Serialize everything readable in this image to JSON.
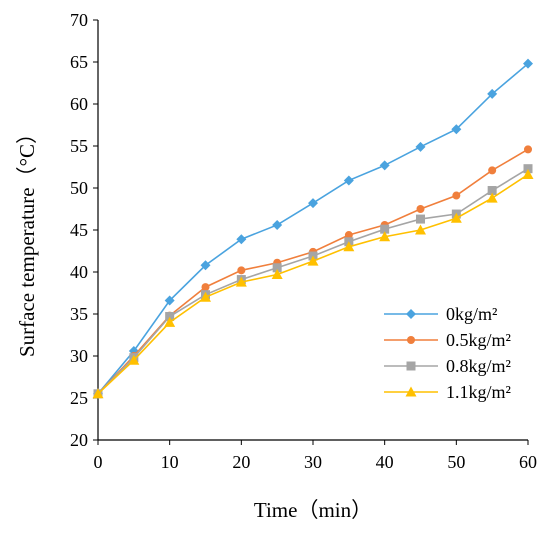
{
  "chart_data": {
    "type": "line",
    "title": "",
    "xlabel": "Time（min）",
    "ylabel": "Surface temperature（°C）",
    "xlim": [
      0,
      60
    ],
    "ylim": [
      20,
      70
    ],
    "x_ticks": [
      0,
      10,
      20,
      30,
      40,
      50,
      60
    ],
    "y_ticks": [
      20,
      25,
      30,
      35,
      40,
      45,
      50,
      55,
      60,
      65,
      70
    ],
    "grid": false,
    "legend_position": "bottom-right",
    "x": [
      0,
      5,
      10,
      15,
      20,
      25,
      30,
      35,
      40,
      45,
      50,
      55,
      60
    ],
    "series": [
      {
        "name": "0kg/m²",
        "color": "#4AA3DF",
        "marker": "diamond",
        "values": [
          25.5,
          30.6,
          36.6,
          40.8,
          43.9,
          45.6,
          48.2,
          50.9,
          52.7,
          54.9,
          57.0,
          61.2,
          64.8
        ]
      },
      {
        "name": "0.5kg/m²",
        "color": "#F07F3C",
        "marker": "circle",
        "values": [
          25.5,
          30.0,
          34.8,
          38.2,
          40.2,
          41.1,
          42.4,
          44.4,
          45.6,
          47.5,
          49.1,
          52.1,
          54.6
        ]
      },
      {
        "name": "0.8kg/m²",
        "color": "#A5A5A5",
        "marker": "square",
        "values": [
          25.5,
          29.8,
          34.7,
          37.3,
          39.1,
          40.5,
          41.9,
          43.6,
          45.1,
          46.3,
          46.9,
          49.7,
          52.3
        ]
      },
      {
        "name": "1.1kg/m²",
        "color": "#FFC000",
        "marker": "triangle",
        "values": [
          25.5,
          29.5,
          34.0,
          37.0,
          38.8,
          39.7,
          41.3,
          43.0,
          44.2,
          45.0,
          46.4,
          48.8,
          51.6
        ]
      }
    ]
  }
}
